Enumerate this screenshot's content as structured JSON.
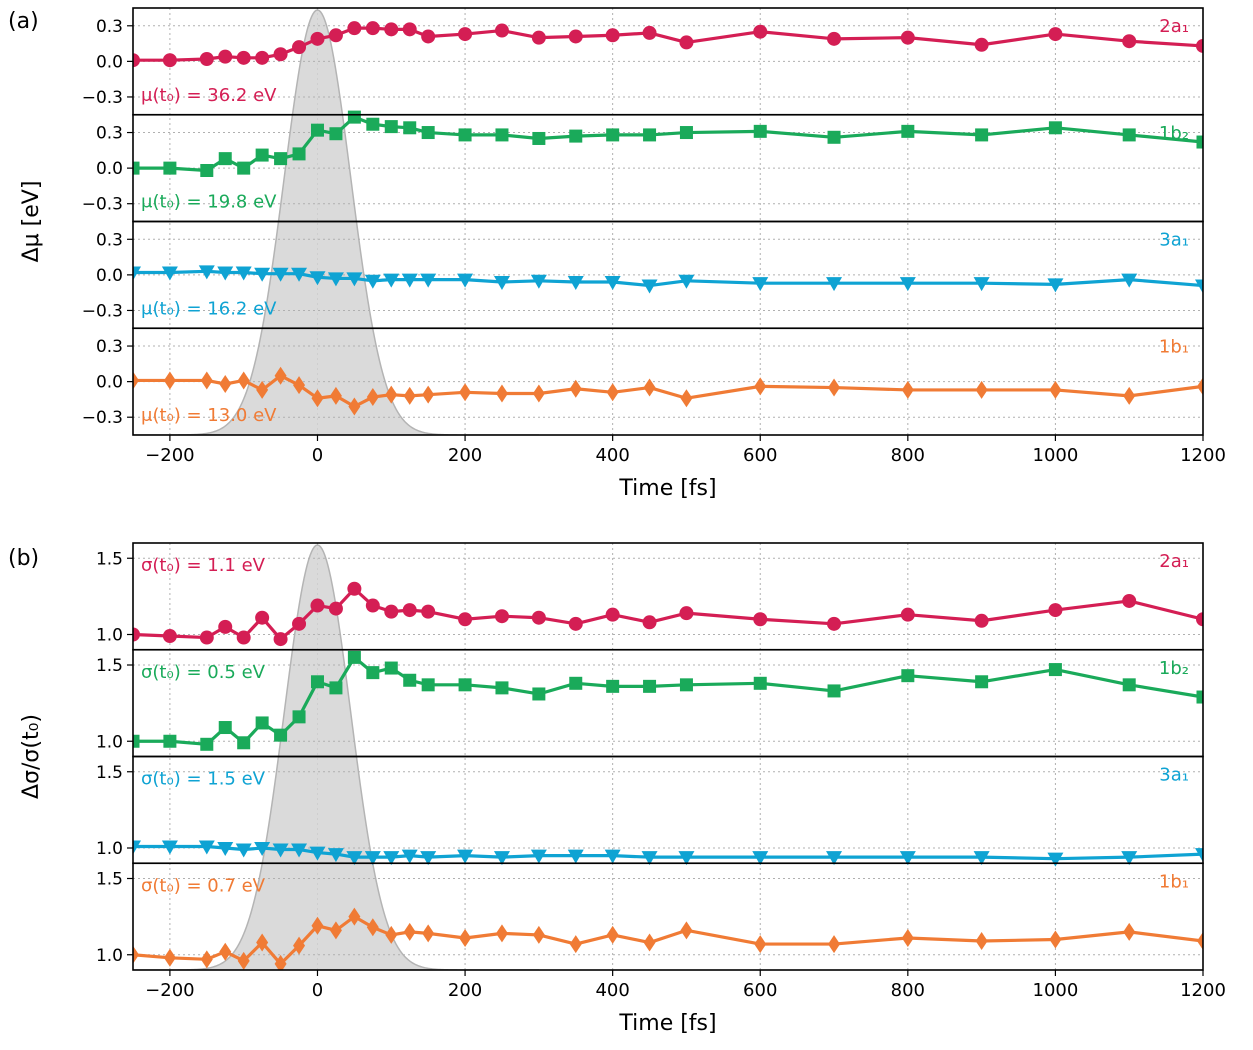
{
  "figure": {
    "panel_a_label": "(a)",
    "panel_b_label": "(b)"
  },
  "chart_data": [
    {
      "type": "line",
      "panel": "(a)",
      "ylabel": "Δμ [eV]",
      "xlabel": "Time [fs]",
      "xlim": [
        -250,
        1200
      ],
      "xticks": [
        -200,
        0,
        200,
        400,
        600,
        800,
        1000,
        1200
      ],
      "xtick_labels": [
        "−200",
        "0",
        "200",
        "400",
        "600",
        "800",
        "1000",
        "1200"
      ],
      "ylim": [
        -0.45,
        0.45
      ],
      "yticks": [
        -0.3,
        0.0,
        0.3
      ],
      "ytick_labels": [
        "−0.3",
        "0.0",
        "0.3"
      ],
      "grid": true,
      "pump_pulse": {
        "center": 0,
        "sigma": 45
      },
      "subplots": [
        {
          "label": "2a₁",
          "annotation": "μ(t₀) = 36.2 eV",
          "color": "#d41e54",
          "marker": "circle",
          "x": [
            -250,
            -200,
            -150,
            -125,
            -100,
            -75,
            -50,
            -25,
            0,
            25,
            50,
            75,
            100,
            125,
            150,
            200,
            250,
            300,
            350,
            400,
            450,
            500,
            600,
            700,
            800,
            900,
            1000,
            1100,
            1200
          ],
          "y": [
            0.01,
            0.01,
            0.02,
            0.04,
            0.03,
            0.03,
            0.06,
            0.12,
            0.19,
            0.22,
            0.28,
            0.28,
            0.27,
            0.27,
            0.21,
            0.23,
            0.26,
            0.2,
            0.21,
            0.22,
            0.24,
            0.16,
            0.25,
            0.19,
            0.2,
            0.14,
            0.23,
            0.17,
            0.13
          ]
        },
        {
          "label": "1b₂",
          "annotation": "μ(t₀) = 19.8 eV",
          "color": "#1aaa5a",
          "marker": "square",
          "x": [
            -250,
            -200,
            -150,
            -125,
            -100,
            -75,
            -50,
            -25,
            0,
            25,
            50,
            75,
            100,
            125,
            150,
            200,
            250,
            300,
            350,
            400,
            450,
            500,
            600,
            700,
            800,
            900,
            1000,
            1100,
            1200
          ],
          "y": [
            0.0,
            0.0,
            -0.02,
            0.08,
            0.0,
            0.11,
            0.08,
            0.12,
            0.32,
            0.29,
            0.43,
            0.37,
            0.35,
            0.34,
            0.3,
            0.28,
            0.28,
            0.25,
            0.27,
            0.28,
            0.28,
            0.3,
            0.31,
            0.26,
            0.31,
            0.28,
            0.34,
            0.28,
            0.22
          ]
        },
        {
          "label": "3a₁",
          "annotation": "μ(t₀) = 16.2 eV",
          "color": "#0fa3d3",
          "marker": "triangle-down",
          "x": [
            -250,
            -200,
            -150,
            -125,
            -100,
            -75,
            -50,
            -25,
            0,
            25,
            50,
            75,
            100,
            125,
            150,
            200,
            250,
            300,
            350,
            400,
            450,
            500,
            600,
            700,
            800,
            900,
            1000,
            1100,
            1200
          ],
          "y": [
            0.02,
            0.02,
            0.03,
            0.02,
            0.02,
            0.01,
            0.01,
            0.01,
            -0.02,
            -0.03,
            -0.03,
            -0.05,
            -0.04,
            -0.04,
            -0.04,
            -0.04,
            -0.06,
            -0.05,
            -0.06,
            -0.06,
            -0.09,
            -0.05,
            -0.07,
            -0.07,
            -0.07,
            -0.07,
            -0.08,
            -0.04,
            -0.09
          ]
        },
        {
          "label": "1b₁",
          "annotation": "μ(t₀) = 13.0 eV",
          "color": "#f07b35",
          "marker": "diamond",
          "x": [
            -250,
            -200,
            -150,
            -125,
            -100,
            -75,
            -50,
            -25,
            0,
            25,
            50,
            75,
            100,
            125,
            150,
            200,
            250,
            300,
            350,
            400,
            450,
            500,
            600,
            700,
            800,
            900,
            1000,
            1100,
            1200
          ],
          "y": [
            0.01,
            0.01,
            0.01,
            -0.02,
            0.01,
            -0.07,
            0.05,
            -0.03,
            -0.14,
            -0.12,
            -0.21,
            -0.13,
            -0.11,
            -0.12,
            -0.11,
            -0.09,
            -0.1,
            -0.1,
            -0.06,
            -0.09,
            -0.05,
            -0.14,
            -0.04,
            -0.05,
            -0.07,
            -0.07,
            -0.07,
            -0.12,
            -0.04
          ]
        }
      ]
    },
    {
      "type": "line",
      "panel": "(b)",
      "ylabel": "Δσ/σ(t₀)",
      "xlabel": "Time [fs]",
      "xlim": [
        -250,
        1200
      ],
      "xticks": [
        -200,
        0,
        200,
        400,
        600,
        800,
        1000,
        1200
      ],
      "xtick_labels": [
        "−200",
        "0",
        "200",
        "400",
        "600",
        "800",
        "1000",
        "1200"
      ],
      "ylim": [
        0.9,
        1.6
      ],
      "yticks": [
        1.0,
        1.5
      ],
      "ytick_labels": [
        "1.0",
        "1.5"
      ],
      "grid": true,
      "pump_pulse": {
        "center": 0,
        "sigma": 45
      },
      "subplots": [
        {
          "label": "2a₁",
          "annotation": "σ(t₀) = 1.1 eV",
          "color": "#d41e54",
          "marker": "circle",
          "x": [
            -250,
            -200,
            -150,
            -125,
            -100,
            -75,
            -50,
            -25,
            0,
            25,
            50,
            75,
            100,
            125,
            150,
            200,
            250,
            300,
            350,
            400,
            450,
            500,
            600,
            700,
            800,
            900,
            1000,
            1100,
            1200
          ],
          "y": [
            1.0,
            0.99,
            0.98,
            1.05,
            0.98,
            1.11,
            0.97,
            1.07,
            1.19,
            1.17,
            1.3,
            1.19,
            1.15,
            1.16,
            1.15,
            1.1,
            1.12,
            1.11,
            1.07,
            1.13,
            1.08,
            1.14,
            1.1,
            1.07,
            1.13,
            1.09,
            1.16,
            1.22,
            1.1
          ]
        },
        {
          "label": "1b₂",
          "annotation": "σ(t₀) = 0.5 eV",
          "color": "#1aaa5a",
          "marker": "square",
          "x": [
            -250,
            -200,
            -150,
            -125,
            -100,
            -75,
            -50,
            -25,
            0,
            25,
            50,
            75,
            100,
            125,
            150,
            200,
            250,
            300,
            350,
            400,
            450,
            500,
            600,
            700,
            800,
            900,
            1000,
            1100,
            1200
          ],
          "y": [
            1.0,
            1.0,
            0.98,
            1.09,
            0.99,
            1.12,
            1.04,
            1.16,
            1.39,
            1.35,
            1.55,
            1.45,
            1.48,
            1.4,
            1.37,
            1.37,
            1.35,
            1.31,
            1.38,
            1.36,
            1.36,
            1.37,
            1.38,
            1.33,
            1.43,
            1.39,
            1.47,
            1.37,
            1.29
          ]
        },
        {
          "label": "3a₁",
          "annotation": "σ(t₀) = 1.5 eV",
          "color": "#0fa3d3",
          "marker": "triangle-down",
          "x": [
            -250,
            -200,
            -150,
            -125,
            -100,
            -75,
            -50,
            -25,
            0,
            25,
            50,
            75,
            100,
            125,
            150,
            200,
            250,
            300,
            350,
            400,
            450,
            500,
            600,
            700,
            800,
            900,
            1000,
            1100,
            1200
          ],
          "y": [
            1.01,
            1.01,
            1.01,
            1.0,
            0.99,
            1.0,
            0.99,
            0.99,
            0.97,
            0.96,
            0.94,
            0.94,
            0.94,
            0.95,
            0.94,
            0.95,
            0.94,
            0.95,
            0.95,
            0.95,
            0.94,
            0.94,
            0.94,
            0.94,
            0.94,
            0.94,
            0.93,
            0.94,
            0.96
          ]
        },
        {
          "label": "1b₁",
          "annotation": "σ(t₀) = 0.7 eV",
          "color": "#f07b35",
          "marker": "diamond",
          "x": [
            -250,
            -200,
            -150,
            -125,
            -100,
            -75,
            -50,
            -25,
            0,
            25,
            50,
            75,
            100,
            125,
            150,
            200,
            250,
            300,
            350,
            400,
            450,
            500,
            600,
            700,
            800,
            900,
            1000,
            1100,
            1200
          ],
          "y": [
            1.0,
            0.98,
            0.97,
            1.02,
            0.96,
            1.08,
            0.94,
            1.06,
            1.19,
            1.16,
            1.25,
            1.18,
            1.13,
            1.15,
            1.14,
            1.11,
            1.14,
            1.13,
            1.07,
            1.13,
            1.08,
            1.16,
            1.07,
            1.07,
            1.11,
            1.09,
            1.1,
            1.15,
            1.09
          ]
        }
      ]
    }
  ]
}
